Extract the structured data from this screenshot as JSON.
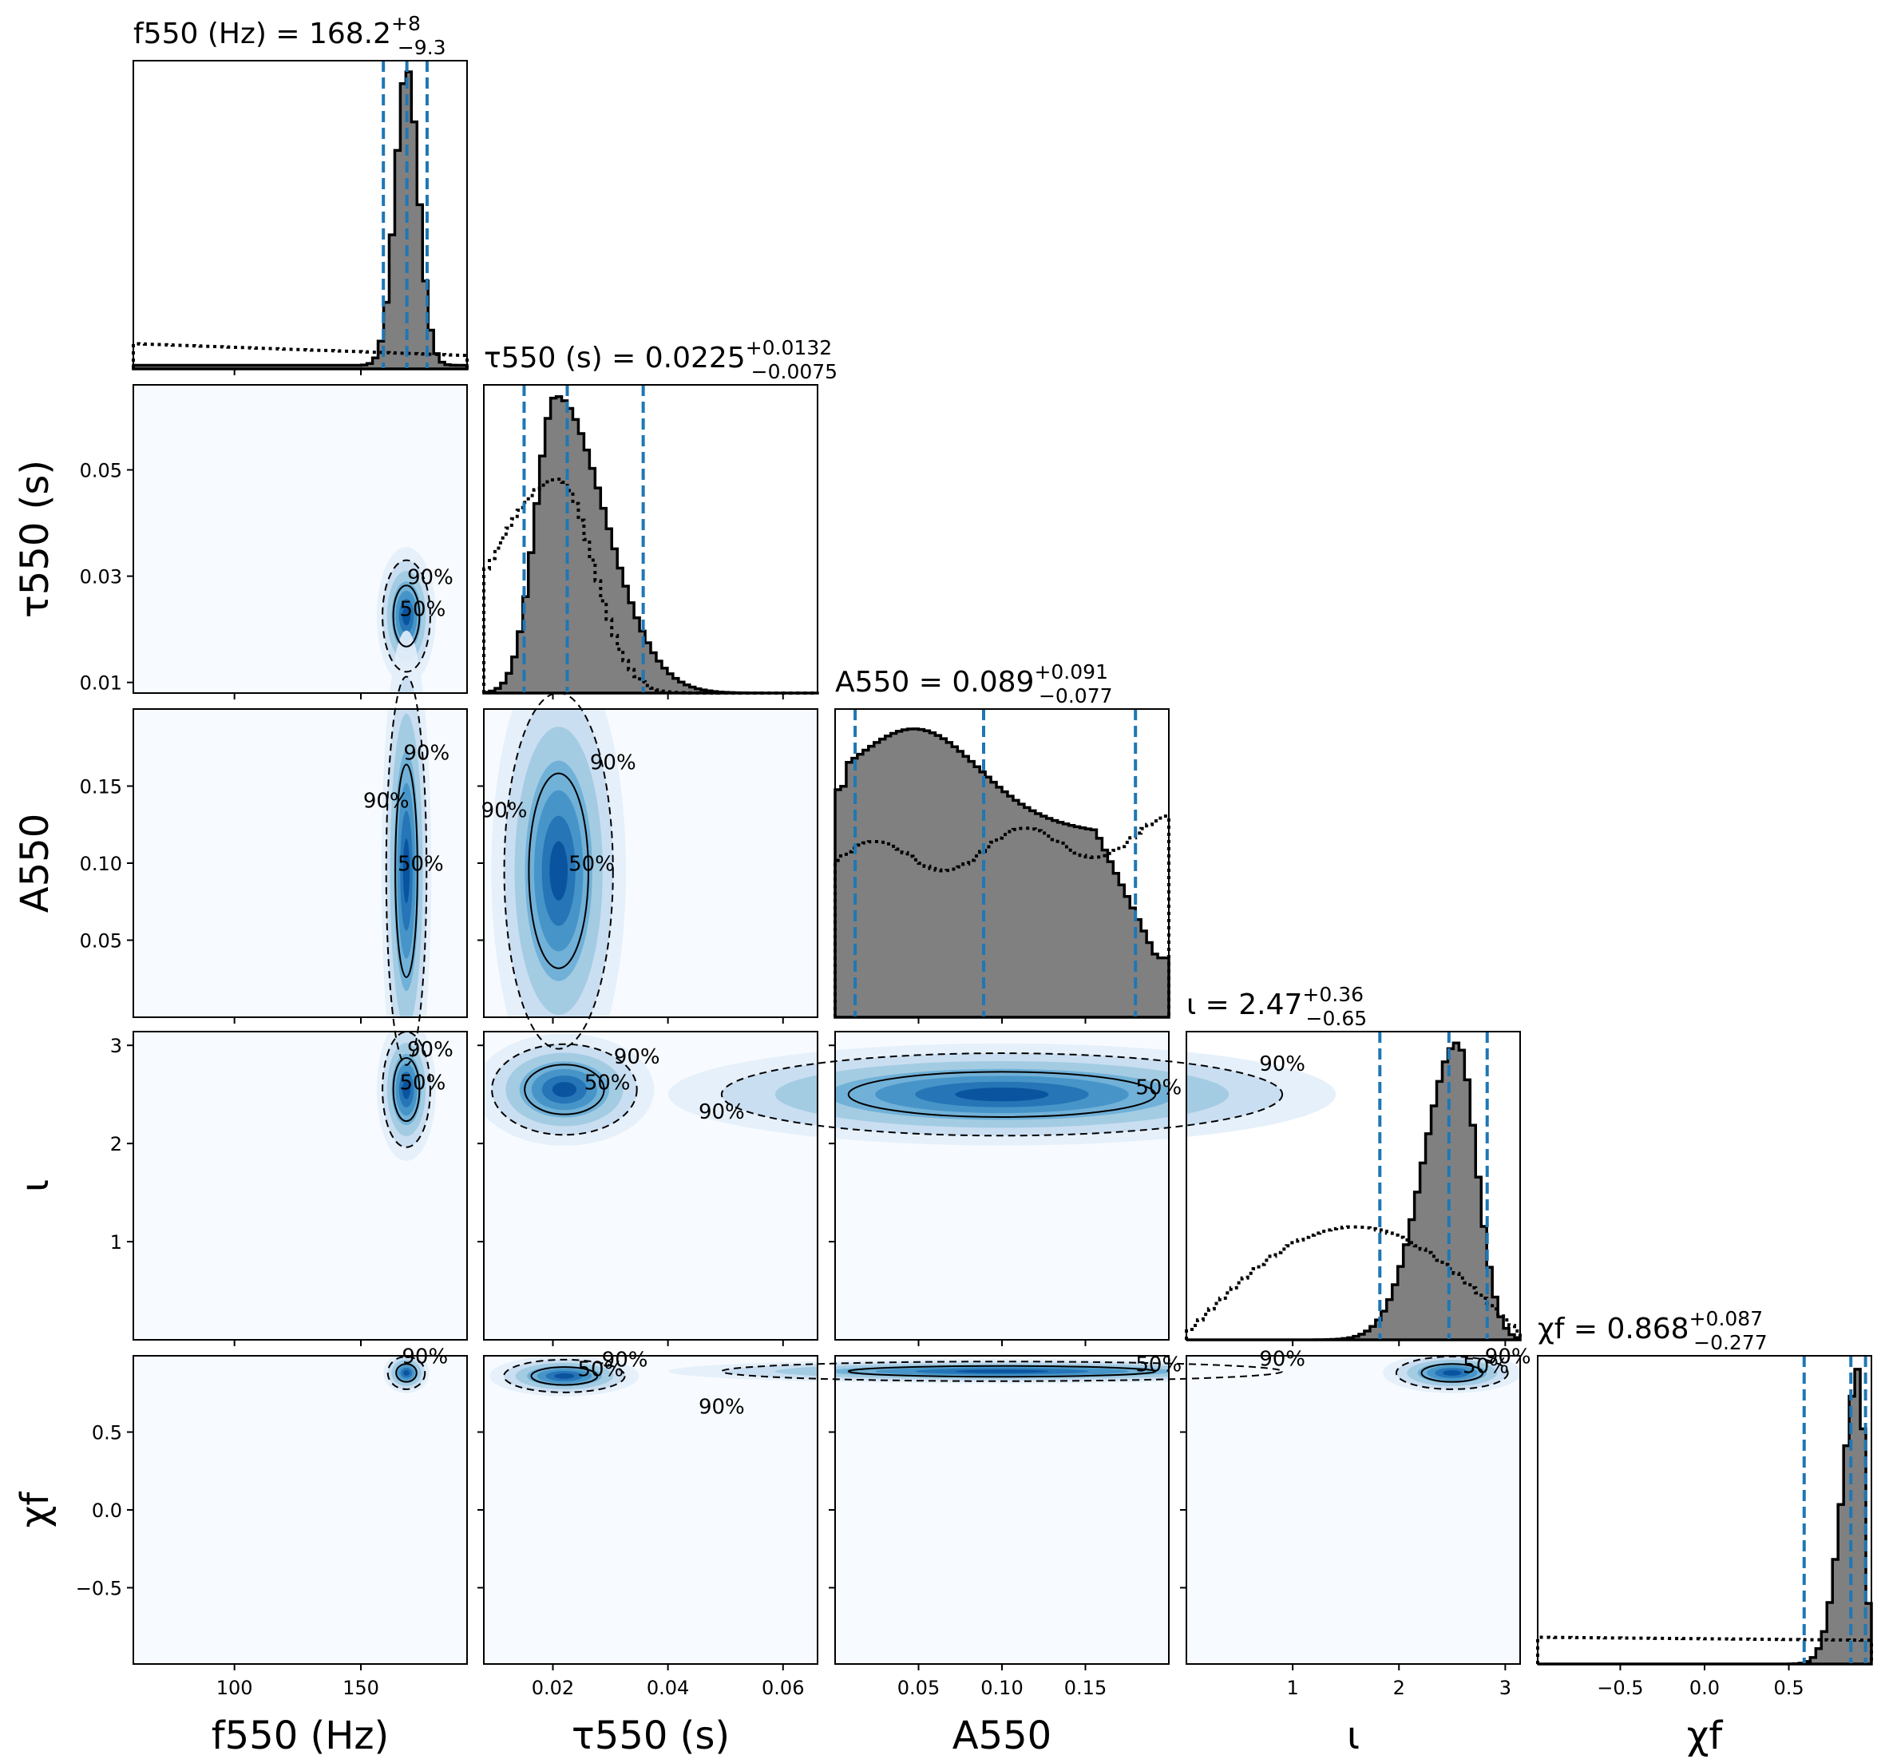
{
  "chart_data": {
    "type": "corner",
    "parameters": [
      {
        "key": "f",
        "label": "f550 (Hz)",
        "title": {
          "name": "f550 (Hz)",
          "median": "168.2",
          "plus": "+8",
          "minus": "−9.3"
        },
        "range": [
          60,
          192
        ],
        "ticks": [
          100,
          150
        ],
        "tick_labels": [
          "100",
          "150"
        ],
        "quantiles": [
          158.9,
          168.2,
          176.2
        ],
        "posterior": {
          "mu": 168.2,
          "sigma": 4.6,
          "floor": 0.012
        },
        "prior": {
          "level": 0.085,
          "shape": "flat"
        }
      },
      {
        "key": "tau",
        "label": "τ550 (s)",
        "title": {
          "name": "τ550 (s)",
          "median": "0.0225",
          "plus": "+0.0132",
          "minus": "−0.0075"
        },
        "range": [
          0.008,
          0.066
        ],
        "ticks": [
          0.01,
          0.03,
          0.05
        ],
        "xticks": [
          0.02,
          0.04,
          0.06
        ],
        "tick_labels": [
          "0.01",
          "0.03",
          "0.05"
        ],
        "xtick_labels": [
          "0.02",
          "0.04",
          "0.06"
        ],
        "quantiles": [
          0.015,
          0.0225,
          0.0357
        ],
        "posterior": {
          "mode": 0.0205,
          "left_sigma": 0.0035,
          "right_sigma": 0.0085
        },
        "prior": {
          "mode": 0.021,
          "left_sigma": 0.012,
          "right_sigma": 0.006,
          "peak": 0.72
        }
      },
      {
        "key": "A",
        "label": "A550",
        "title": {
          "name": "A550",
          "median": "0.089",
          "plus": "+0.091",
          "minus": "−0.077"
        },
        "range": [
          0.0,
          0.2
        ],
        "ticks": [
          0.05,
          0.1,
          0.15
        ],
        "xticks": [
          0.05,
          0.1,
          0.15
        ],
        "tick_labels": [
          "0.05",
          "0.10",
          "0.15"
        ],
        "xtick_labels": [
          "0.05",
          "0.10",
          "0.15"
        ],
        "quantiles": [
          0.012,
          0.089,
          0.18
        ],
        "posterior": {
          "shape": "broad"
        },
        "prior": {
          "shape": "flat-rising"
        }
      },
      {
        "key": "iota",
        "label": "ι",
        "title": {
          "name": "ι",
          "median": "2.47",
          "plus": "+0.36",
          "minus": "−0.65"
        },
        "range": [
          0.0,
          3.14
        ],
        "ticks": [
          1,
          2,
          3
        ],
        "tick_labels": [
          "1",
          "2",
          "3"
        ],
        "quantiles": [
          1.82,
          2.47,
          2.83
        ],
        "posterior": {
          "mode": 2.55,
          "left_sigma": 0.32,
          "right_sigma": 0.18
        },
        "prior": {
          "shape": "sin"
        }
      },
      {
        "key": "chi",
        "label": "χf",
        "title": {
          "name": "χf",
          "median": "0.868",
          "plus": "+0.087",
          "minus": "−0.277"
        },
        "range": [
          -0.99,
          0.99
        ],
        "ticks": [
          -0.5,
          0.0,
          0.5
        ],
        "tick_labels": [
          "−0.5",
          "0.0",
          "0.5"
        ],
        "quantiles": [
          0.591,
          0.868,
          0.955
        ],
        "posterior": {
          "mode": 0.92,
          "left_sigma": 0.1,
          "right_sigma": 0.03
        },
        "prior": {
          "level": 0.09,
          "shape": "flat"
        }
      }
    ],
    "contour_levels": [
      "50%",
      "90%"
    ],
    "pairs": [
      {
        "row": 1,
        "col": 0,
        "cx": 168,
        "cy": 0.0225,
        "sx": 4.5,
        "sy": 0.005,
        "labels50": [
          "50%"
        ],
        "labels90": [
          "90%"
        ]
      },
      {
        "row": 2,
        "col": 0,
        "cx": 168,
        "cy": 0.095,
        "sx": 3.8,
        "sy": 0.06,
        "labels50": [
          "50%"
        ],
        "labels90": [
          "90%",
          "90%"
        ]
      },
      {
        "row": 2,
        "col": 1,
        "cx": 0.021,
        "cy": 0.095,
        "sx": 0.0045,
        "sy": 0.055,
        "labels50": [
          "50%"
        ],
        "labels90": [
          "90%",
          "90%"
        ]
      },
      {
        "row": 3,
        "col": 0,
        "cx": 168,
        "cy": 2.55,
        "sx": 4.5,
        "sy": 0.28,
        "labels50": [
          "50%"
        ],
        "labels90": [
          "90%"
        ]
      },
      {
        "row": 3,
        "col": 1,
        "cx": 0.022,
        "cy": 2.55,
        "sx": 0.006,
        "sy": 0.22,
        "labels50": [
          "50%"
        ],
        "labels90": [
          "90%"
        ]
      },
      {
        "row": 3,
        "col": 2,
        "cx": 0.1,
        "cy": 2.5,
        "sx": 0.08,
        "sy": 0.2,
        "labels50": [
          "50%"
        ],
        "labels90": [
          "90%",
          "90%"
        ]
      },
      {
        "row": 4,
        "col": 0,
        "cx": 168,
        "cy": 0.88,
        "sx": 3.5,
        "sy": 0.05,
        "labels50": [],
        "labels90": [
          "90%"
        ]
      },
      {
        "row": 4,
        "col": 1,
        "cx": 0.022,
        "cy": 0.86,
        "sx": 0.005,
        "sy": 0.05,
        "labels50": [
          "50%"
        ],
        "labels90": [
          "90%"
        ]
      },
      {
        "row": 4,
        "col": 2,
        "cx": 0.1,
        "cy": 0.89,
        "sx": 0.08,
        "sy": 0.03,
        "labels50": [
          "50%"
        ],
        "labels90": [
          "90%",
          "90%"
        ]
      },
      {
        "row": 4,
        "col": 3,
        "cx": 2.5,
        "cy": 0.88,
        "sx": 0.25,
        "sy": 0.05,
        "labels50": [
          "50%"
        ],
        "labels90": [
          "90%"
        ]
      }
    ]
  }
}
